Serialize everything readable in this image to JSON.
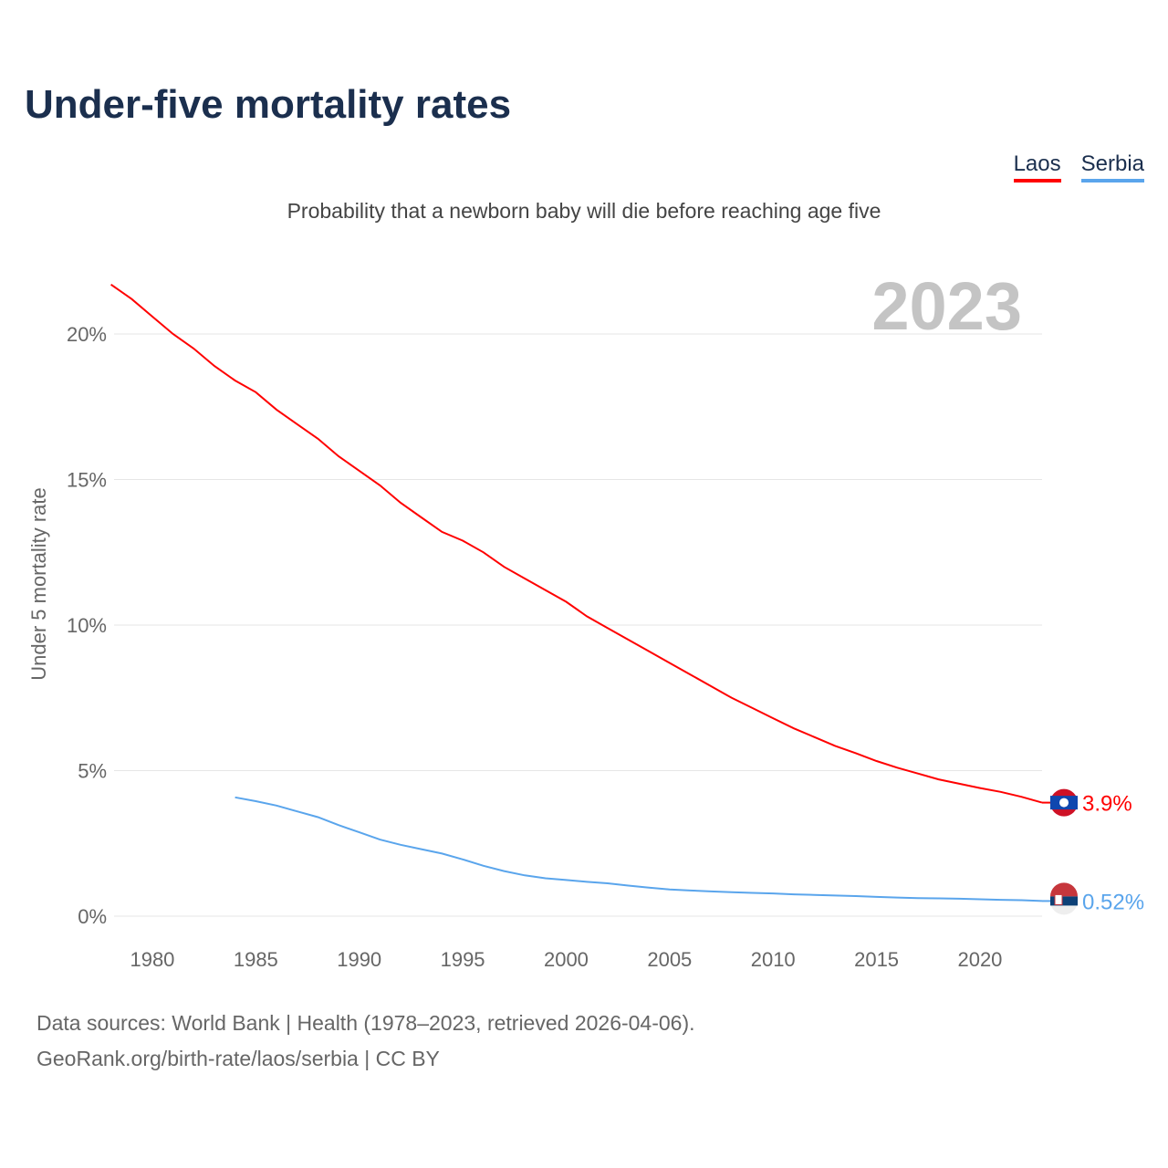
{
  "title": "Under-five mortality rates",
  "subtitle": "Probability that a newborn baby will die before reaching age five",
  "legend": [
    {
      "name": "Laos",
      "color": "#ff0000"
    },
    {
      "name": "Serbia",
      "color": "#5aa5ec"
    }
  ],
  "footer": {
    "line1": "Data sources: World Bank | Health (1978–2023, retrieved 2026-04-06).",
    "line2": "GeoRank.org/birth-rate/laos/serbia | CC BY"
  },
  "chart_data": {
    "type": "line",
    "title": "Under-five mortality rates",
    "ylabel": "Under 5 mortality rate",
    "xlim": [
      1978,
      2023
    ],
    "ylim": [
      0,
      20
    ],
    "year_label": "2023",
    "xticks": [
      1980,
      1985,
      1990,
      1995,
      2000,
      2005,
      2010,
      2015,
      2020
    ],
    "yticks": [
      {
        "v": 0,
        "l": "0%"
      },
      {
        "v": 5,
        "l": "5%"
      },
      {
        "v": 10,
        "l": "10%"
      },
      {
        "v": 15,
        "l": "15%"
      },
      {
        "v": 20,
        "l": "20%"
      }
    ],
    "series": [
      {
        "name": "Laos",
        "color": "#ff0000",
        "end_label": "3.9%",
        "start": 1978,
        "values": [
          21.7,
          21.2,
          20.6,
          20.0,
          19.5,
          18.9,
          18.4,
          18.0,
          17.4,
          16.9,
          16.4,
          15.8,
          15.3,
          14.8,
          14.2,
          13.7,
          13.2,
          12.9,
          12.5,
          12.0,
          11.6,
          11.2,
          10.8,
          10.3,
          9.9,
          9.5,
          9.1,
          8.7,
          8.3,
          7.9,
          7.5,
          7.15,
          6.8,
          6.45,
          6.15,
          5.85,
          5.6,
          5.33,
          5.1,
          4.9,
          4.7,
          4.55,
          4.4,
          4.27,
          4.1,
          3.9
        ]
      },
      {
        "name": "Serbia",
        "color": "#5aa5ec",
        "end_label": "0.52%",
        "start": 1984,
        "values": [
          4.08,
          3.95,
          3.8,
          3.6,
          3.4,
          3.13,
          2.88,
          2.63,
          2.45,
          2.3,
          2.15,
          1.95,
          1.73,
          1.55,
          1.4,
          1.3,
          1.24,
          1.18,
          1.13,
          1.05,
          0.98,
          0.92,
          0.88,
          0.85,
          0.82,
          0.8,
          0.78,
          0.75,
          0.73,
          0.71,
          0.69,
          0.66,
          0.64,
          0.62,
          0.61,
          0.6,
          0.58,
          0.56,
          0.55,
          0.52
        ]
      }
    ]
  }
}
